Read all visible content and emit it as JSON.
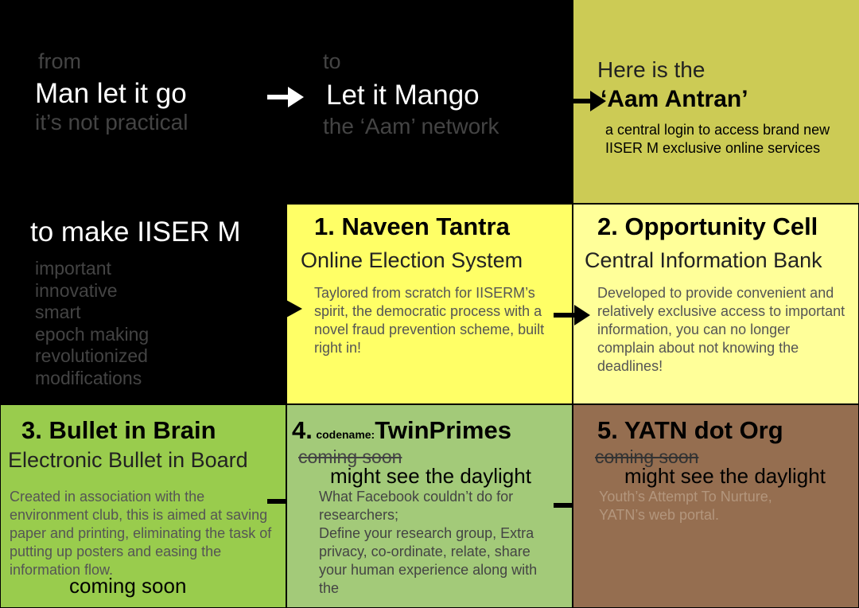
{
  "colors": {
    "black": "#000000",
    "olive": "#cccb55",
    "yellow": "#ffff66",
    "light_yellow": "#ffff99",
    "green": "#99cc4d",
    "light_green": "#a3ca79",
    "brown": "#956e50"
  },
  "top_left": {
    "from": "from",
    "line1": "Man let it go",
    "line2": "it’s not practical"
  },
  "top_middle": {
    "to": "to",
    "line1": "Let it Mango",
    "line2": "the ‘Aam’ network"
  },
  "top_right": {
    "intro": "Here is the",
    "title": "‘Aam Antran’",
    "description": "a central login to access brand new IISER M exclusive online services"
  },
  "mid_left": {
    "heading": "to make IISER M",
    "words": [
      "important",
      "innovative",
      "smart",
      "epoch making",
      "revolutionized",
      "modifications"
    ]
  },
  "services": {
    "naveen": {
      "title": "1. Naveen Tantra",
      "subtitle": "Online Election System",
      "description": "Taylored from scratch for IISERM’s spirit, the democratic process with a novel fraud prevention scheme, built right in!"
    },
    "opportunity": {
      "title": "2. Opportunity Cell",
      "subtitle": "Central Information Bank",
      "description": "Developed to provide convenient and relatively exclusive access to important information, you can no longer complain about not knowing the deadlines!"
    },
    "bullet": {
      "title": "3. Bullet in Brain",
      "subtitle": "Electronic Bullet in Board",
      "description": "Created in association with the environment club, this is aimed at saving paper and printing, eliminating the task of putting up posters and easing the information flow.",
      "status": "coming soon"
    },
    "twinprimes": {
      "number": "4.",
      "codename": "codename:",
      "title": "TwinPrimes",
      "status_struck": "coming soon",
      "status": "might see the daylight",
      "description": "What Facebook couldn’t do for researchers;\nDefine your research group, Extra privacy, co-ordinate, relate, share your human experience along with the"
    },
    "yatn": {
      "title": "5. YATN dot Org",
      "status_struck": "coming soon",
      "status": "might see the daylight",
      "description": "Youth’s Attempt To Nurture, YATN’s web portal."
    }
  }
}
